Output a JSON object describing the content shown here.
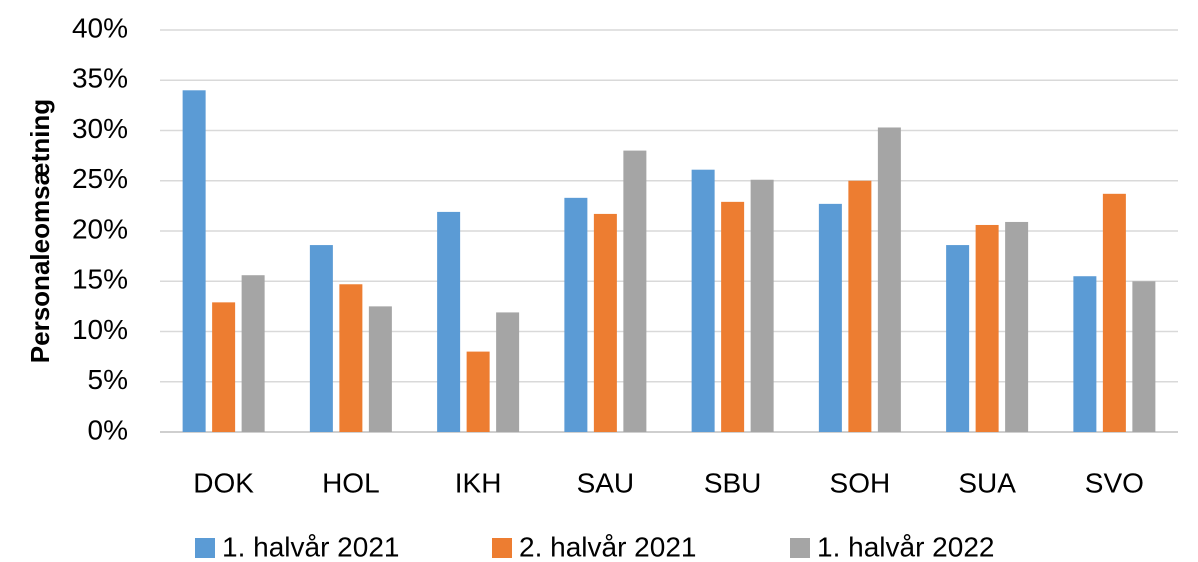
{
  "chart_data": {
    "type": "bar",
    "y_label": "Personaleomsætning",
    "categories": [
      "DOK",
      "HOL",
      "IKH",
      "SAU",
      "SBU",
      "SOH",
      "SUA",
      "SVO"
    ],
    "series": [
      {
        "name": "1. halvår 2021",
        "color": "#5b9bd5",
        "values": [
          34.0,
          18.6,
          21.9,
          23.3,
          26.1,
          22.7,
          18.6,
          15.5
        ]
      },
      {
        "name": "2. halvår 2021",
        "color": "#ed7d31",
        "values": [
          12.9,
          14.7,
          8.0,
          21.7,
          22.9,
          25.0,
          20.6,
          23.7
        ]
      },
      {
        "name": "1. halvår 2022",
        "color": "#a5a5a5",
        "values": [
          15.6,
          12.5,
          11.9,
          28.0,
          25.1,
          30.3,
          20.9,
          15.0
        ]
      }
    ],
    "ylim": [
      0,
      40
    ],
    "yticks": [
      {
        "value": 0,
        "label": "0%"
      },
      {
        "value": 5,
        "label": "5%"
      },
      {
        "value": 10,
        "label": "10%"
      },
      {
        "value": 15,
        "label": "15%"
      },
      {
        "value": 20,
        "label": "20%"
      },
      {
        "value": 25,
        "label": "25%"
      },
      {
        "value": 30,
        "label": "30%"
      },
      {
        "value": 35,
        "label": "35%"
      },
      {
        "value": 40,
        "label": "40%"
      }
    ],
    "grid": true,
    "legend": "bottom"
  }
}
